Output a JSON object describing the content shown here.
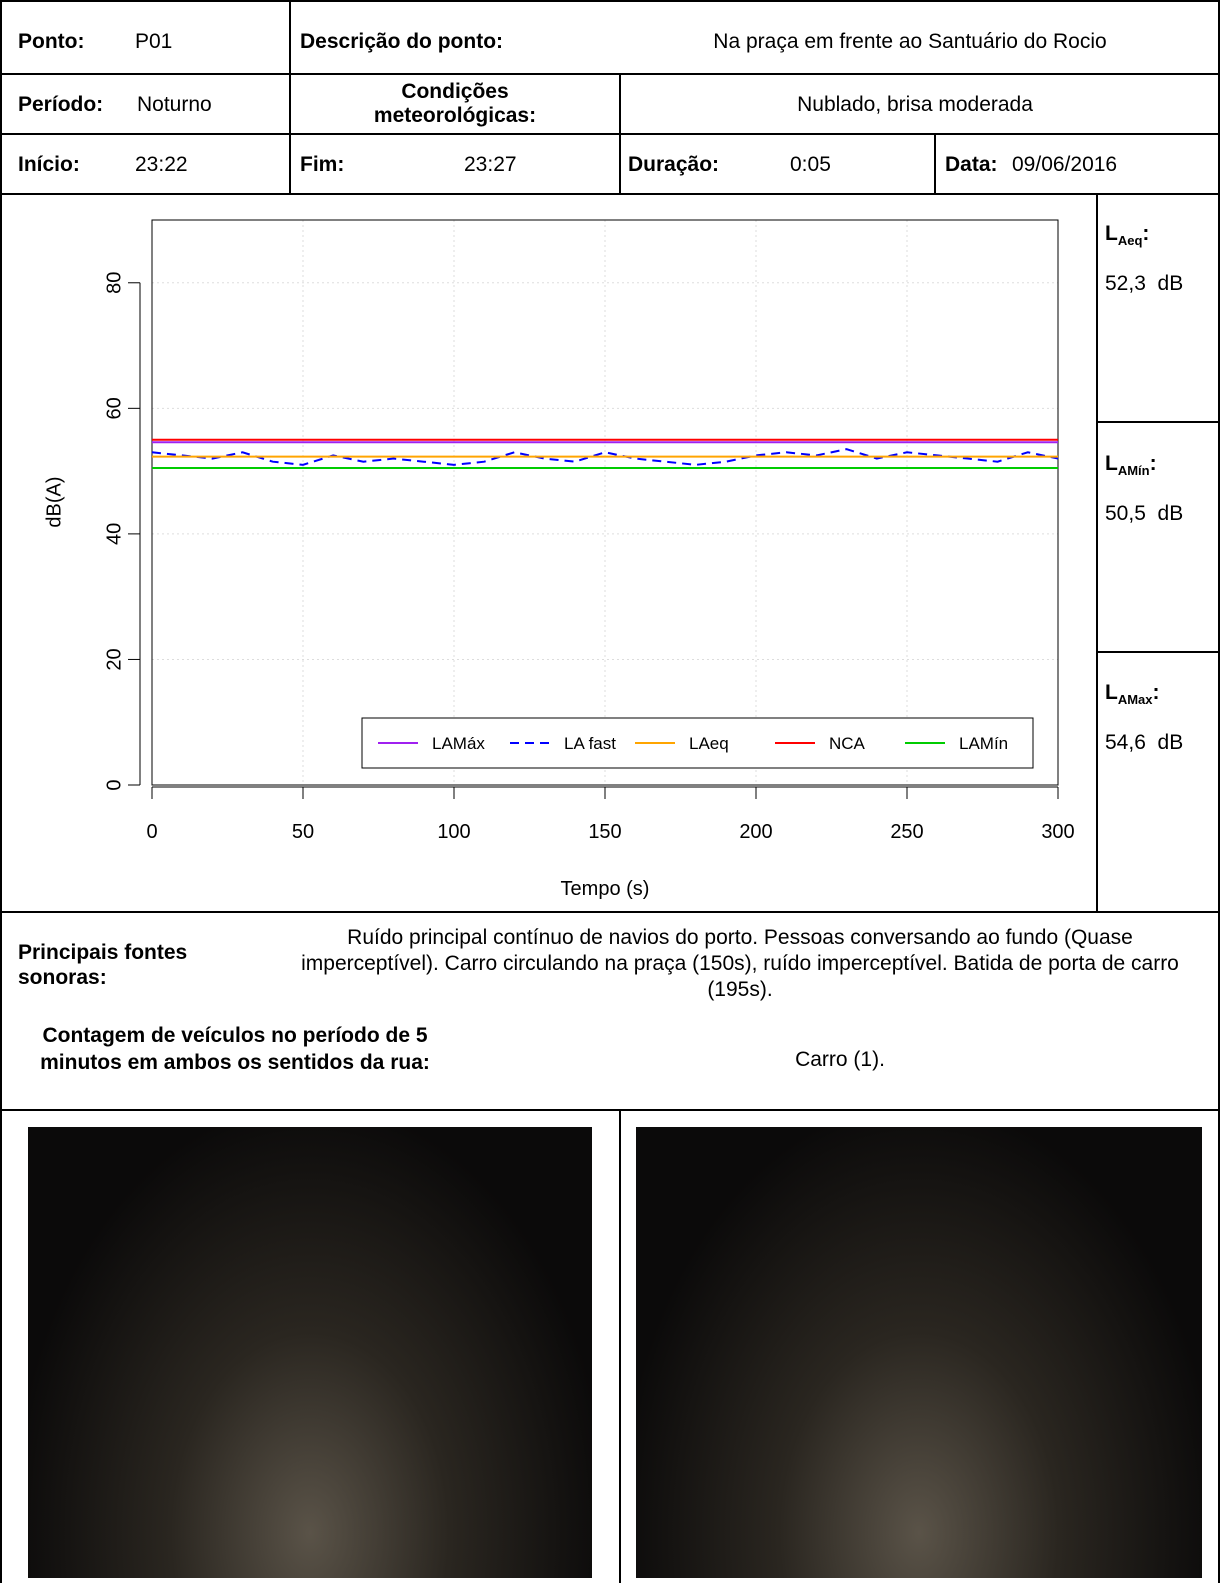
{
  "header": {
    "ponto_label": "Ponto:",
    "ponto": "P01",
    "descricao_label": "Descrição do ponto:",
    "descricao": "Na praça em frente ao Santuário do Rocio",
    "periodo_label": "Período:",
    "periodo": "Noturno",
    "condicoes_label": "Condições meteorológicas:",
    "condicoes": "Nublado, brisa moderada",
    "inicio_label": "Início:",
    "inicio": "23:22",
    "fim_label": "Fim:",
    "fim": "23:27",
    "duracao_label": "Duração:",
    "duracao": "0:05",
    "data_label": "Data:",
    "data": "09/06/2016"
  },
  "chart_data": {
    "type": "line",
    "x_label": "Tempo (s)",
    "y_label": "dB(A)",
    "x": [
      0,
      10,
      20,
      30,
      40,
      50,
      60,
      70,
      80,
      90,
      100,
      110,
      120,
      130,
      140,
      150,
      160,
      170,
      180,
      190,
      200,
      210,
      220,
      230,
      240,
      250,
      260,
      270,
      280,
      290,
      300
    ],
    "series": [
      {
        "name": "LAMáx",
        "color": "#a020f0",
        "dash": false,
        "values": [
          54.6,
          54.6,
          54.6,
          54.6,
          54.6,
          54.6,
          54.6,
          54.6,
          54.6,
          54.6,
          54.6,
          54.6,
          54.6,
          54.6,
          54.6,
          54.6,
          54.6,
          54.6,
          54.6,
          54.6,
          54.6,
          54.6,
          54.6,
          54.6,
          54.6,
          54.6,
          54.6,
          54.6,
          54.6,
          54.6,
          54.6
        ]
      },
      {
        "name": "LA fast",
        "color": "#0000ff",
        "dash": true,
        "values": [
          53,
          52.5,
          52,
          53,
          51.5,
          51,
          52.5,
          51.5,
          52,
          51.5,
          51,
          51.5,
          53,
          52,
          51.5,
          53,
          52,
          51.5,
          51,
          51.5,
          52.5,
          53,
          52.5,
          53.5,
          52,
          53,
          52.5,
          52,
          51.5,
          53,
          52
        ]
      },
      {
        "name": "LAeq",
        "color": "#ffa500",
        "dash": false,
        "values": [
          52.3,
          52.3,
          52.3,
          52.3,
          52.3,
          52.3,
          52.3,
          52.3,
          52.3,
          52.3,
          52.3,
          52.3,
          52.3,
          52.3,
          52.3,
          52.3,
          52.3,
          52.3,
          52.3,
          52.3,
          52.3,
          52.3,
          52.3,
          52.3,
          52.3,
          52.3,
          52.3,
          52.3,
          52.3,
          52.3,
          52.3
        ]
      },
      {
        "name": "NCA",
        "color": "#ff0000",
        "dash": false,
        "values": [
          55,
          55,
          55,
          55,
          55,
          55,
          55,
          55,
          55,
          55,
          55,
          55,
          55,
          55,
          55,
          55,
          55,
          55,
          55,
          55,
          55,
          55,
          55,
          55,
          55,
          55,
          55,
          55,
          55,
          55,
          55
        ]
      },
      {
        "name": "LAMín",
        "color": "#00cc00",
        "dash": false,
        "values": [
          50.5,
          50.5,
          50.5,
          50.5,
          50.5,
          50.5,
          50.5,
          50.5,
          50.5,
          50.5,
          50.5,
          50.5,
          50.5,
          50.5,
          50.5,
          50.5,
          50.5,
          50.5,
          50.5,
          50.5,
          50.5,
          50.5,
          50.5,
          50.5,
          50.5,
          50.5,
          50.5,
          50.5,
          50.5,
          50.5,
          50.5
        ]
      }
    ],
    "xlim": [
      0,
      300
    ],
    "xticks": [
      0,
      50,
      100,
      150,
      200,
      250,
      300
    ],
    "ylim": [
      0,
      90
    ],
    "yticks": [
      0,
      20,
      40,
      60,
      80
    ],
    "grid": true
  },
  "side": [
    {
      "main": "L",
      "sub": "Aeq",
      "colon": ":",
      "value": "52,3  dB"
    },
    {
      "main": "L",
      "sub": "AMín",
      "colon": ":",
      "value": "50,5  dB"
    },
    {
      "main": "L",
      "sub": "AMax",
      "colon": ":",
      "value": "54,6  dB"
    }
  ],
  "fontes": {
    "label": "Principais fontes sonoras:",
    "text": "Ruído principal contínuo de navios do porto. Pessoas conversando ao fundo (Quase imperceptível). Carro circulando na praça (150s), ruído imperceptível. Batida de porta de carro (195s)."
  },
  "contagem": {
    "label": "Contagem de veículos no período de 5 minutos em ambos os sentidos da rua:",
    "text": "Carro (1)."
  }
}
